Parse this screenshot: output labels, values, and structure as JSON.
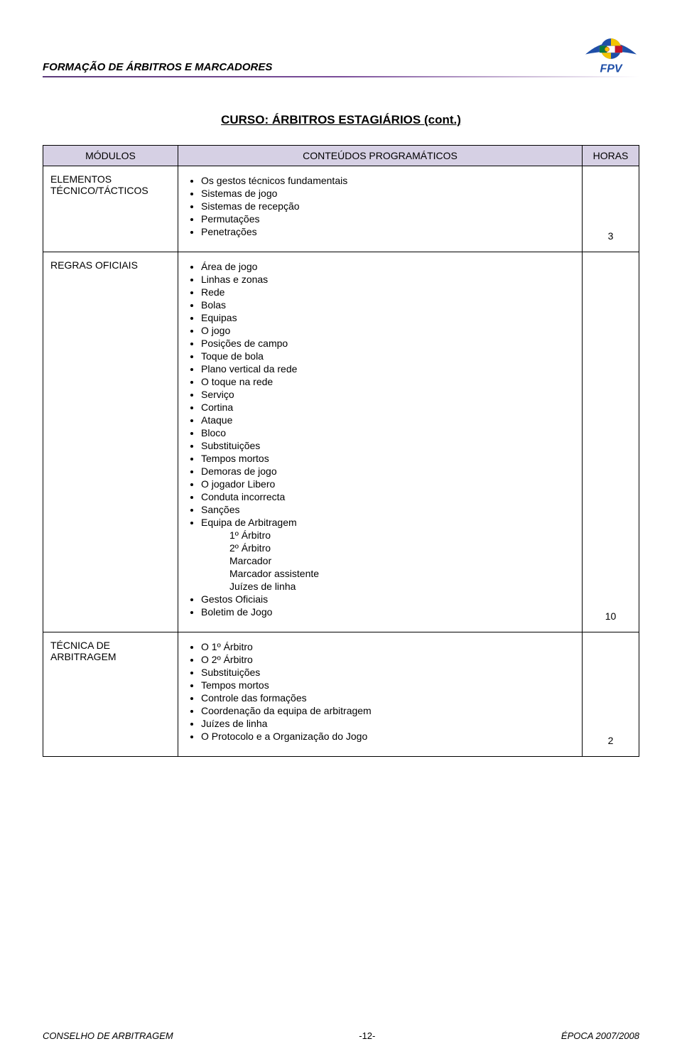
{
  "header": {
    "title": "FORMAÇÃO DE ÁRBITROS E MARCADORES",
    "logo_text": "FPV",
    "logo_colors": {
      "ball_blue": "#1f4fa8",
      "ball_yellow": "#f2c400",
      "flag_green": "#0a7a3d",
      "flag_red": "#c0112a",
      "swoosh": "#1f4fa8"
    }
  },
  "course_title": "CURSO: ÁRBITROS ESTAGIÁRIOS (cont.)",
  "table": {
    "headers": {
      "col1": "MÓDULOS",
      "col2": "CONTEÚDOS PROGRAMÁTICOS",
      "col3": "HORAS"
    },
    "rows": [
      {
        "module": "ELEMENTOS TÉCNICO/TÁCTICOS",
        "items": [
          "Os gestos técnicos fundamentais",
          "Sistemas de jogo",
          "Sistemas de recepção",
          "Permutações",
          "Penetrações"
        ],
        "hours": "3"
      },
      {
        "module": "REGRAS OFICIAIS",
        "items": [
          "Área de jogo",
          "Linhas e zonas",
          "Rede",
          "Bolas",
          "Equipas",
          "O jogo",
          "Posições de campo",
          "Toque de bola",
          "Plano vertical da rede",
          "O toque na rede",
          "Serviço",
          "Cortina",
          "Ataque",
          "Bloco",
          "Substituições",
          "Tempos mortos",
          "Demoras de jogo",
          "O jogador Libero",
          "Conduta incorrecta",
          "Sanções",
          "Equipa de Arbitragem"
        ],
        "subitems_after": 20,
        "subitems": [
          "1º Árbitro",
          "2º Árbitro",
          "Marcador",
          "Marcador assistente",
          "Juízes de linha"
        ],
        "items_tail": [
          "Gestos Oficiais",
          "Boletim de Jogo"
        ],
        "hours": "10"
      },
      {
        "module": "TÉCNICA DE ARBITRAGEM",
        "items": [
          "O 1º Árbitro",
          "O 2º Árbitro",
          "Substituições",
          "Tempos mortos",
          "Controle das formações",
          "Coordenação da equipa de arbitragem",
          "Juízes de linha",
          "O Protocolo e a Organização do Jogo"
        ],
        "hours": "2"
      }
    ]
  },
  "footer": {
    "left": "CONSELHO DE ARBITRAGEM",
    "center": "-12-",
    "right": "ÉPOCA 2007/2008"
  }
}
